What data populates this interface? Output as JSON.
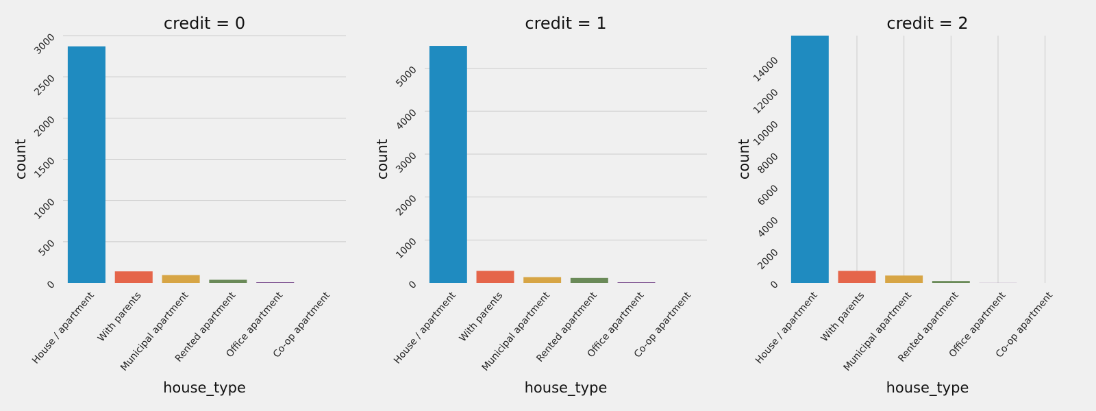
{
  "figure": {
    "background": "#f0f0f0",
    "colors": [
      "#1f8bc0",
      "#e5654a",
      "#d7a545",
      "#6a8a58",
      "#7a4c8c",
      "#c57a3c"
    ]
  },
  "chart_data": [
    {
      "type": "bar",
      "title": "credit = 0",
      "xlabel": "house_type",
      "ylabel": "count",
      "categories": [
        "House / apartment",
        "With parents",
        "Municipal apartment",
        "Rented apartment",
        "Office apartment",
        "Co-op apartment"
      ],
      "values": [
        2870,
        140,
        95,
        38,
        8,
        0
      ],
      "ylim": [
        0,
        3000
      ],
      "yticks": [
        0,
        500,
        1000,
        1500,
        2000,
        2500,
        3000
      ],
      "grid": "horizontal"
    },
    {
      "type": "bar",
      "title": "credit = 1",
      "xlabel": "house_type",
      "ylabel": "count",
      "categories": [
        "House / apartment",
        "With parents",
        "Municipal apartment",
        "Rented apartment",
        "Office apartment",
        "Co-op apartment"
      ],
      "values": [
        5520,
        280,
        135,
        115,
        15,
        0
      ],
      "ylim": [
        0,
        5760
      ],
      "yticks": [
        0,
        1000,
        2000,
        3000,
        4000,
        5000
      ],
      "grid": "horizontal"
    },
    {
      "type": "bar",
      "title": "credit = 2",
      "xlabel": "house_type",
      "ylabel": "count",
      "categories": [
        "House / apartment",
        "With parents",
        "Municipal apartment",
        "Rented apartment",
        "Office apartment",
        "Co-op apartment"
      ],
      "values": [
        15450,
        750,
        460,
        120,
        5,
        0
      ],
      "ylim": [
        0,
        15450
      ],
      "yticks": [
        0,
        2000,
        4000,
        6000,
        8000,
        10000,
        12000,
        14000
      ],
      "grid": "vertical"
    }
  ]
}
